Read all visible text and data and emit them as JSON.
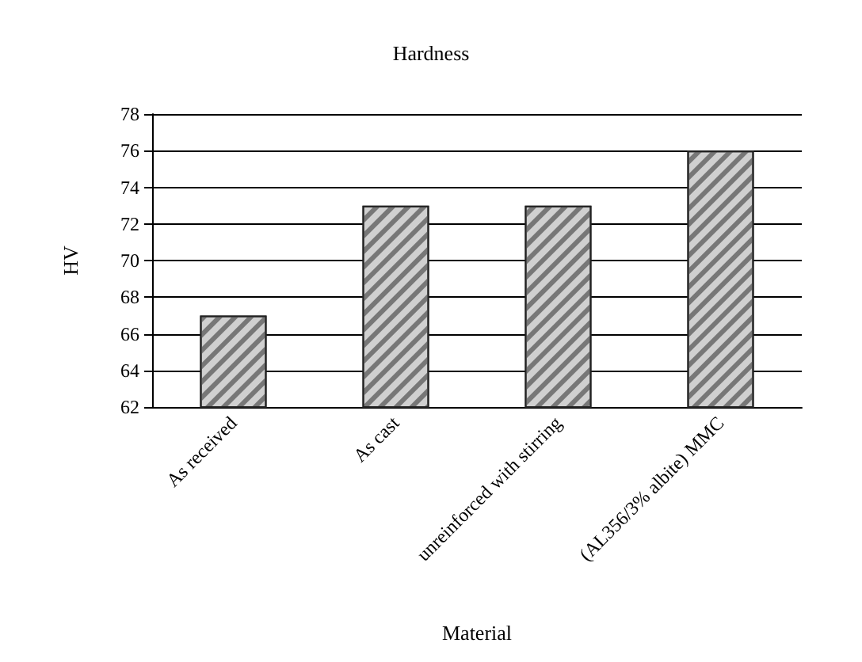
{
  "chart_data": {
    "type": "bar",
    "title": "Hardness",
    "xlabel": "Material",
    "ylabel": "HV",
    "categories": [
      "As received",
      "As cast",
      "unreinforced with stirring",
      "(AL356/3% albite) MMC"
    ],
    "values": [
      67,
      73,
      73,
      76
    ],
    "color": "#d0d0d0",
    "ylim": [
      62,
      78
    ],
    "yticks": [
      62,
      64,
      66,
      68,
      70,
      72,
      74,
      76,
      78
    ],
    "grid": "y"
  }
}
